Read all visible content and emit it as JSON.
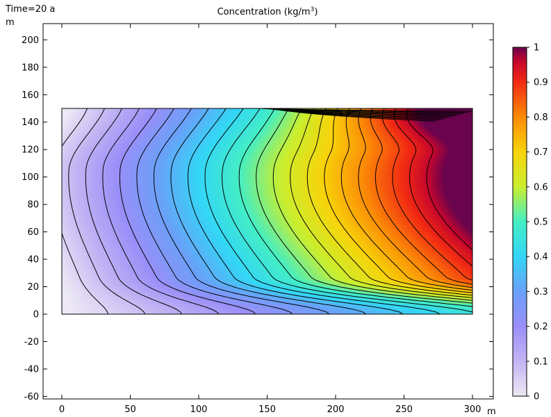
{
  "header": {
    "time_label": "Time=20 a",
    "plot_title": "Concentration (kg/m³)"
  },
  "chart_data": {
    "type": "heatmap",
    "title": "Concentration (kg/m³)",
    "time_label": "Time=20 a",
    "x_unit": "m",
    "y_unit": "m",
    "xlim": [
      -15,
      315
    ],
    "ylim": [
      -62,
      213
    ],
    "x_ticks": [
      0,
      50,
      100,
      150,
      200,
      250,
      300
    ],
    "y_ticks": [
      -60,
      -40,
      -20,
      0,
      20,
      40,
      60,
      80,
      100,
      120,
      140,
      160,
      180,
      200
    ],
    "domain": {
      "x": [
        0,
        300
      ],
      "y": [
        0,
        150
      ]
    },
    "inlet_x_start": 145,
    "colorbar": {
      "min": 0,
      "max": 1,
      "ticks": [
        0,
        0.1,
        0.2,
        0.3,
        0.4,
        0.5,
        0.6,
        0.7,
        0.8,
        0.9,
        1
      ],
      "colors": [
        "#ece8f5",
        "#c3b4f3",
        "#9a8ff8",
        "#6aa0f8",
        "#33d6f6",
        "#44eec4",
        "#c9ee2f",
        "#f7d40a",
        "#fb8c07",
        "#f22a13",
        "#c4062d",
        "#6a044e"
      ],
      "stops": [
        0,
        0.1,
        0.2,
        0.3,
        0.4,
        0.5,
        0.6,
        0.7,
        0.8,
        0.9,
        0.96,
        1
      ]
    },
    "contour_levels": 24,
    "grid": false
  }
}
